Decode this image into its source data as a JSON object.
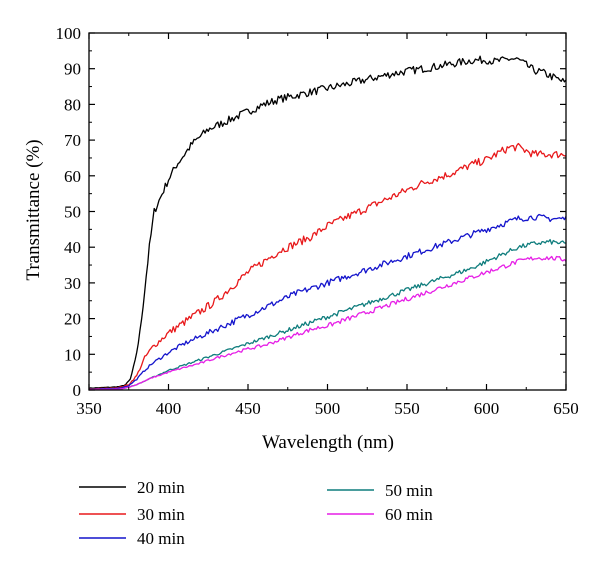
{
  "chart_data": {
    "type": "line",
    "title": "",
    "xlabel": "Wavelength (nm)",
    "ylabel": "Transmittance (%)",
    "xlim": [
      350,
      650
    ],
    "ylim": [
      0,
      100
    ],
    "xticks": [
      350,
      400,
      450,
      500,
      550,
      600,
      650
    ],
    "yticks": [
      0,
      10,
      20,
      30,
      40,
      50,
      60,
      70,
      80,
      90,
      100
    ],
    "grid": false,
    "legend_position": "bottom",
    "series": [
      {
        "name": "20 min",
        "color": "#000000",
        "noise": 1.0,
        "x": [
          350,
          365,
          370,
          373,
          376,
          379,
          382,
          385,
          388,
          391,
          394,
          397,
          400,
          405,
          410,
          415,
          420,
          425,
          430,
          435,
          440,
          450,
          460,
          470,
          480,
          490,
          500,
          510,
          520,
          530,
          540,
          550,
          560,
          570,
          580,
          590,
          600,
          605,
          610,
          615,
          620,
          625,
          630,
          635,
          640,
          645,
          650
        ],
        "y": [
          0.5,
          0.8,
          1.0,
          1.5,
          3,
          8,
          16,
          28,
          40,
          50,
          53,
          56,
          59,
          63,
          66,
          69,
          71,
          73,
          74,
          75,
          76,
          78,
          80,
          81.5,
          82.5,
          83.5,
          84.5,
          85.5,
          86.5,
          87.5,
          88.5,
          89.3,
          90,
          90.7,
          91.5,
          92.3,
          92.5,
          92,
          92.3,
          92.8,
          92.5,
          91,
          89.5,
          89,
          88,
          87,
          86
        ]
      },
      {
        "name": "30 min",
        "color": "#e8191b",
        "noise": 1.0,
        "x": [
          350,
          365,
          370,
          375,
          380,
          385,
          390,
          395,
          400,
          410,
          420,
          430,
          440,
          450,
          460,
          470,
          480,
          490,
          500,
          510,
          520,
          530,
          540,
          550,
          560,
          570,
          580,
          590,
          600,
          610,
          615,
          620,
          625,
          630,
          640,
          650
        ],
        "y": [
          0.3,
          0.5,
          0.8,
          1.5,
          4,
          9,
          12,
          14,
          16,
          19,
          22,
          25,
          29,
          33,
          36,
          39,
          41,
          43,
          46,
          48,
          50,
          52,
          54,
          56,
          58,
          59.5,
          61,
          63,
          64.5,
          67,
          68,
          68,
          67,
          66,
          66,
          66
        ]
      },
      {
        "name": "40 min",
        "color": "#1414cc",
        "noise": 0.8,
        "x": [
          350,
          365,
          370,
          375,
          380,
          385,
          390,
          395,
          400,
          410,
          420,
          430,
          440,
          450,
          460,
          470,
          480,
          490,
          500,
          510,
          520,
          530,
          540,
          550,
          560,
          570,
          580,
          590,
          600,
          610,
          620,
          630,
          640,
          650
        ],
        "y": [
          0.2,
          0.4,
          0.6,
          1.2,
          3,
          5.5,
          7.5,
          9,
          10.5,
          13,
          15,
          17,
          19,
          21,
          23,
          25,
          27,
          28.5,
          30,
          31.5,
          33,
          34.5,
          36,
          37.5,
          39,
          40.5,
          42,
          43.5,
          45,
          46.5,
          48,
          48.5,
          48,
          48
        ]
      },
      {
        "name": "50 min",
        "color": "#0f7d7d",
        "noise": 0.6,
        "x": [
          350,
          370,
          375,
          380,
          385,
          390,
          395,
          400,
          410,
          420,
          430,
          440,
          450,
          460,
          470,
          480,
          490,
          500,
          510,
          520,
          530,
          540,
          550,
          560,
          570,
          580,
          590,
          600,
          610,
          620,
          630,
          640,
          650
        ],
        "y": [
          0.1,
          0.3,
          0.8,
          1.5,
          2.5,
          3.5,
          4.5,
          5.5,
          7,
          8.5,
          10,
          11.5,
          13,
          14.5,
          16,
          17.5,
          19,
          20.5,
          22,
          23.5,
          25,
          26.5,
          28,
          29.5,
          31,
          32.5,
          34,
          36,
          38,
          40,
          41,
          41.5,
          41
        ]
      },
      {
        "name": "60 min",
        "color": "#e61ee6",
        "noise": 0.6,
        "x": [
          350,
          370,
          375,
          380,
          385,
          390,
          395,
          400,
          410,
          420,
          430,
          440,
          450,
          460,
          470,
          480,
          490,
          500,
          510,
          520,
          530,
          540,
          550,
          560,
          570,
          580,
          590,
          600,
          610,
          620,
          630,
          640,
          650
        ],
        "y": [
          0.1,
          0.3,
          0.8,
          1.5,
          2.5,
          3.5,
          4.2,
          5,
          6.3,
          7.5,
          9,
          10.3,
          11.5,
          12.5,
          14,
          15.5,
          17,
          18,
          19.5,
          21,
          22.5,
          24,
          25.5,
          27,
          28.5,
          30,
          31.5,
          33,
          34.5,
          36,
          37,
          37,
          36.5
        ]
      }
    ]
  }
}
